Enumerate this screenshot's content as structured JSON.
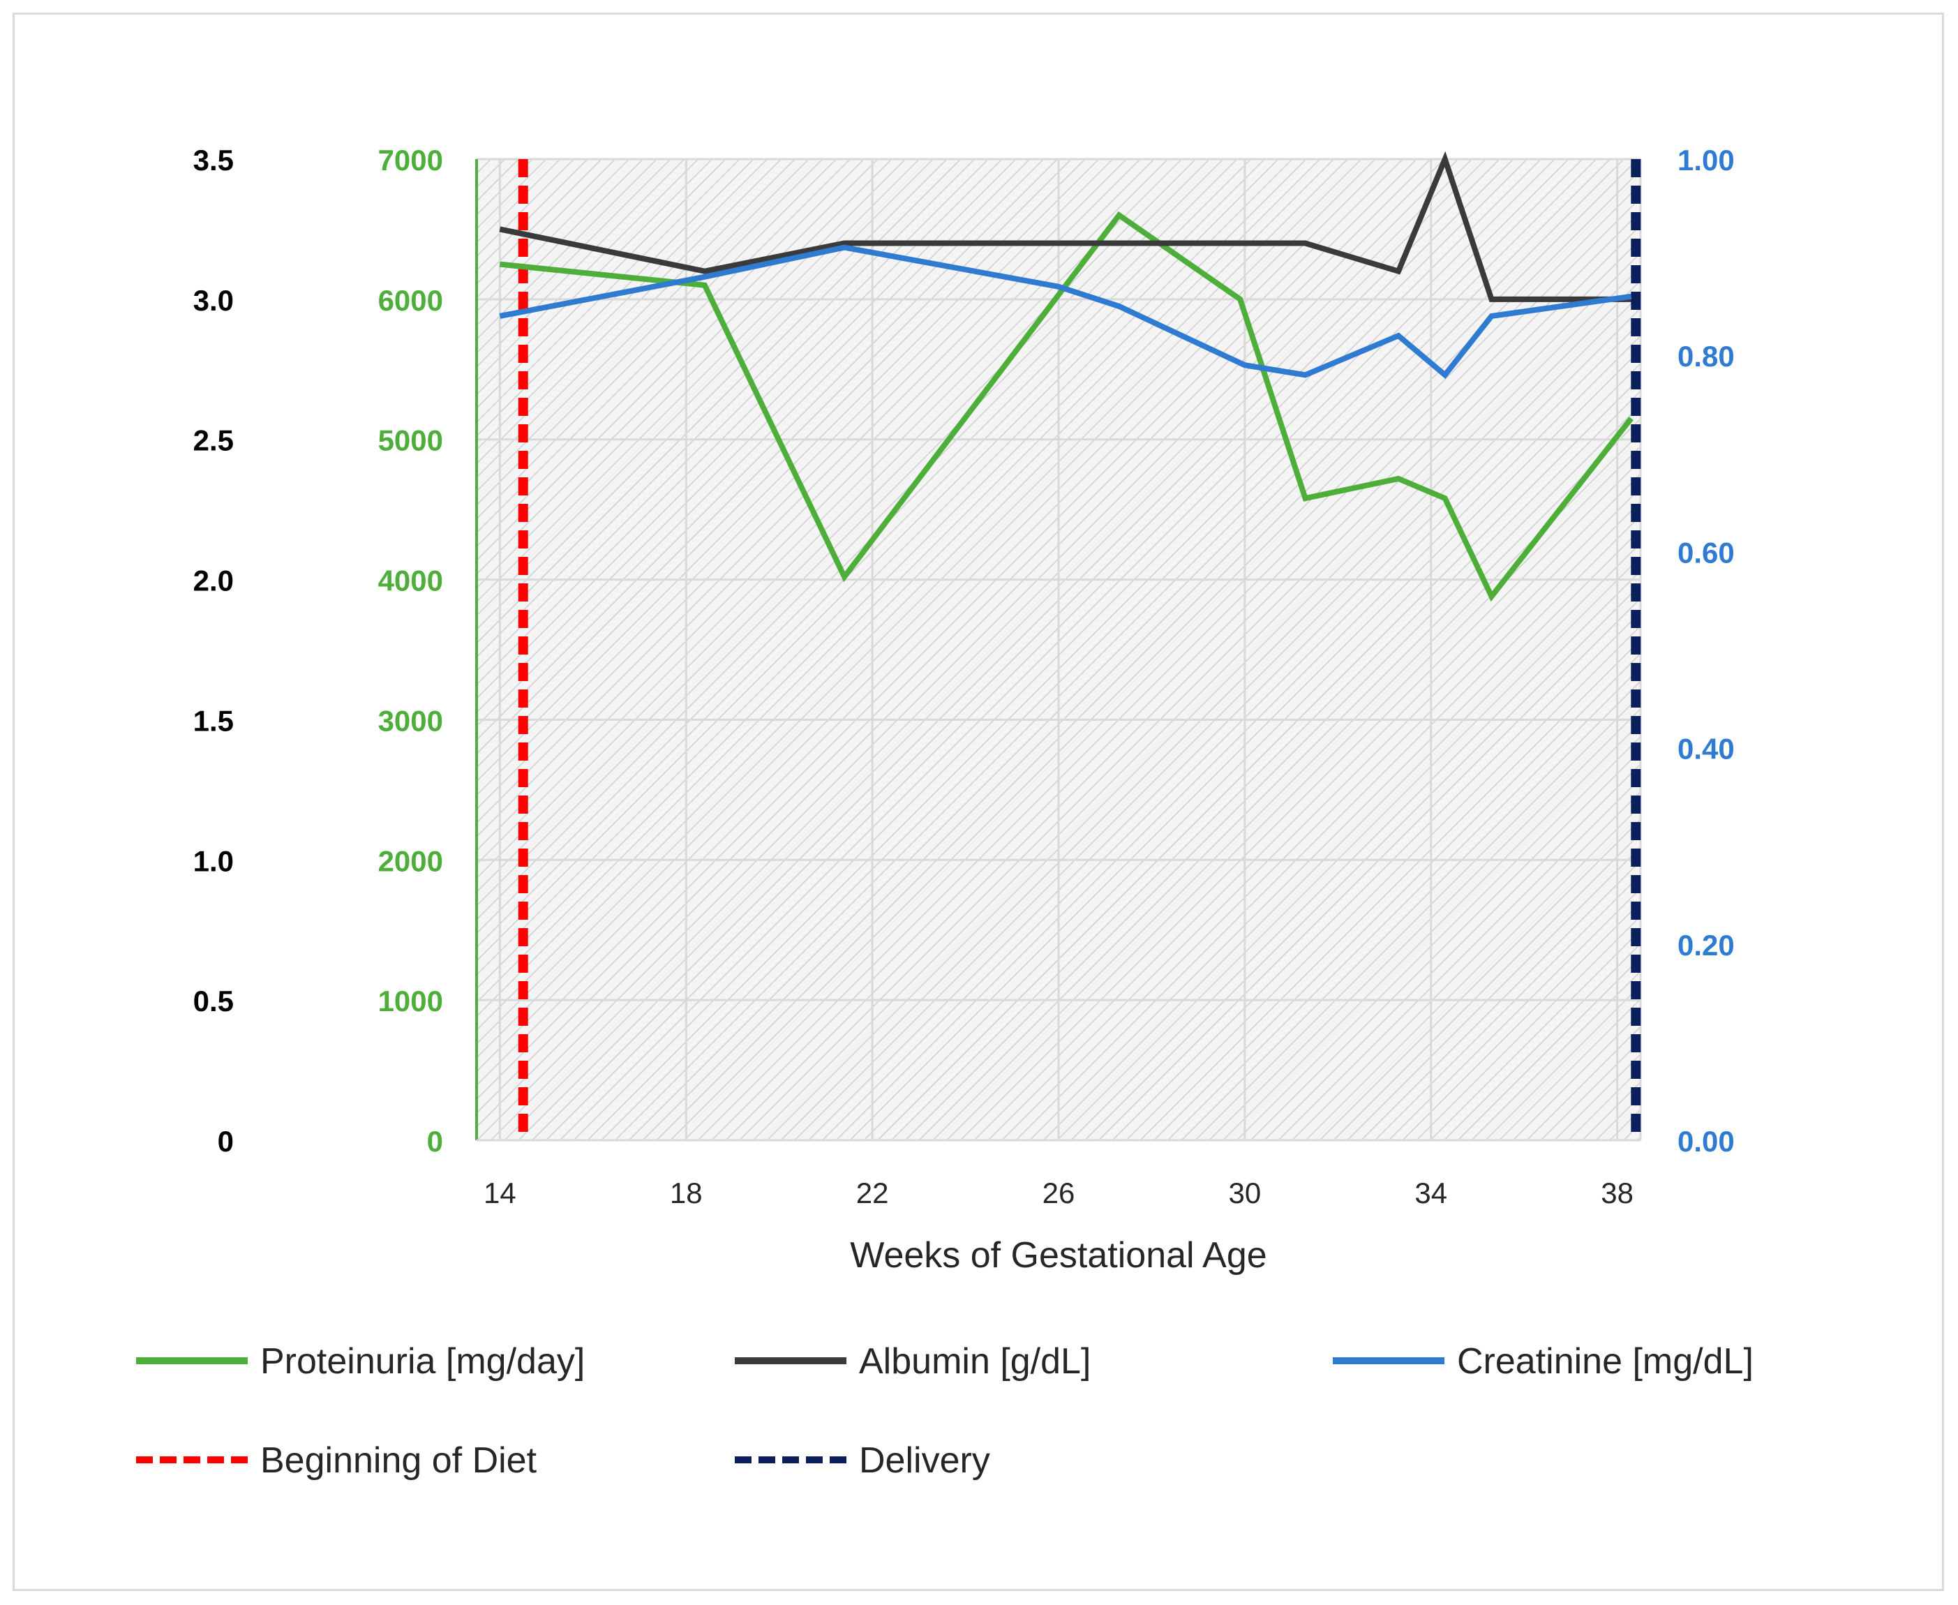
{
  "chart_data": {
    "type": "line",
    "title": "",
    "xlabel": "Weeks of Gestational Age",
    "x_ticks": [
      14,
      18,
      22,
      26,
      30,
      34,
      38
    ],
    "xlim": [
      13.5,
      38.5
    ],
    "axes": {
      "albumin": {
        "ticks": [
          "0",
          "0.5",
          "1.0",
          "1.5",
          "2.0",
          "2.5",
          "3.0",
          "3.5"
        ],
        "ylim": [
          0,
          3.5
        ],
        "color": "#000000"
      },
      "proteinuria": {
        "ticks": [
          "0",
          "1000",
          "2000",
          "3000",
          "4000",
          "5000",
          "6000",
          "7000"
        ],
        "ylim": [
          0,
          7000
        ],
        "color": "#4eae3a"
      },
      "creatinine": {
        "ticks": [
          "0.00",
          "0.20",
          "0.40",
          "0.60",
          "0.80",
          "1.00"
        ],
        "ylim": [
          0,
          1.0
        ],
        "color": "#2f7bd1"
      }
    },
    "series": [
      {
        "name": "Proteinuria [mg/day]",
        "axis": "proteinuria",
        "color": "#4eae3a",
        "x": [
          14,
          18.4,
          21.4,
          27.3,
          29.9,
          31.3,
          33.3,
          34.3,
          35.3,
          38.3
        ],
        "values": [
          6250,
          6100,
          4020,
          6600,
          6000,
          4580,
          4720,
          4580,
          3880,
          5150
        ]
      },
      {
        "name": "Albumin [g/dL]",
        "axis": "albumin",
        "color": "#3a3a3a",
        "x": [
          14,
          18.4,
          21.4,
          31.3,
          33.3,
          34.3,
          35.3,
          38.3
        ],
        "values": [
          3.25,
          3.1,
          3.2,
          3.2,
          3.1,
          3.5,
          3.0,
          3.0
        ]
      },
      {
        "name": "Creatinine [mg/dL]",
        "axis": "creatinine",
        "color": "#2f7bd1",
        "x": [
          14,
          18.4,
          21.4,
          26,
          27.3,
          30,
          31.3,
          33.3,
          34.3,
          35.3,
          38.3
        ],
        "values": [
          0.84,
          0.88,
          0.91,
          0.87,
          0.85,
          0.79,
          0.78,
          0.82,
          0.78,
          0.84,
          0.86
        ]
      }
    ],
    "reference_lines": [
      {
        "name": "Beginning of Diet",
        "x": 14.5,
        "color": "#ff0000"
      },
      {
        "name": "Delivery",
        "x": 38.4,
        "color": "#0a1f5c"
      }
    ],
    "legend": [
      {
        "label": "Proteinuria [mg/day]",
        "color": "#4eae3a",
        "style": "solid"
      },
      {
        "label": "Albumin [g/dL]",
        "color": "#3a3a3a",
        "style": "solid"
      },
      {
        "label": "Creatinine [mg/dL]",
        "color": "#2f7bd1",
        "style": "solid"
      },
      {
        "label": "Beginning of Diet",
        "color": "#ff0000",
        "style": "dashed"
      },
      {
        "label": "Delivery",
        "color": "#0a1f5c",
        "style": "dashed"
      }
    ],
    "legend_position": "bottom",
    "grid": true
  }
}
